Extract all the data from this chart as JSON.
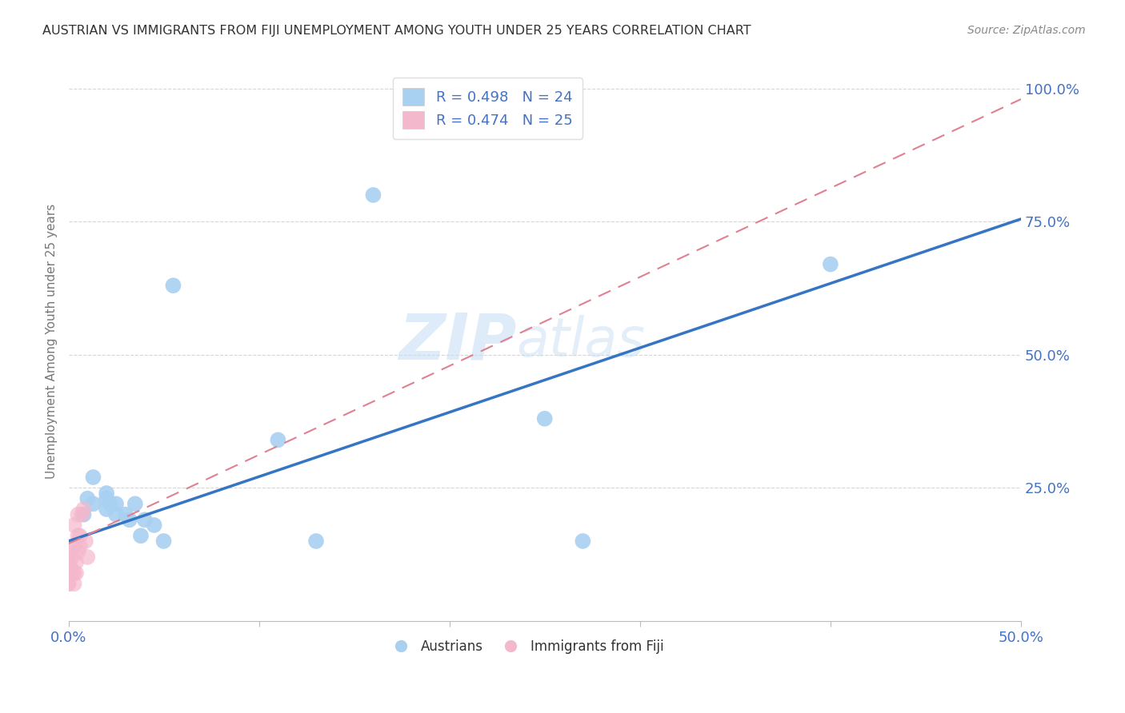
{
  "title": "AUSTRIAN VS IMMIGRANTS FROM FIJI UNEMPLOYMENT AMONG YOUTH UNDER 25 YEARS CORRELATION CHART",
  "source": "Source: ZipAtlas.com",
  "ylabel": "Unemployment Among Youth under 25 years",
  "xlim": [
    0.0,
    0.5
  ],
  "ylim": [
    0.0,
    1.05
  ],
  "legend_blue_label": "R = 0.498   N = 24",
  "legend_pink_label": "R = 0.474   N = 25",
  "legend_label_austrians": "Austrians",
  "legend_label_fiji": "Immigrants from Fiji",
  "blue_color": "#a8d0f0",
  "pink_color": "#f4b8cc",
  "blue_line_color": "#3575c3",
  "pink_line_color": "#e08090",
  "text_color": "#4472C4",
  "watermark_color": "#c8dff5",
  "austrians_x": [
    0.008,
    0.01,
    0.013,
    0.013,
    0.02,
    0.02,
    0.02,
    0.022,
    0.025,
    0.025,
    0.03,
    0.032,
    0.035,
    0.038,
    0.04,
    0.045,
    0.05,
    0.055,
    0.11,
    0.13,
    0.16,
    0.25,
    0.27,
    0.4
  ],
  "austrians_y": [
    0.2,
    0.23,
    0.27,
    0.22,
    0.21,
    0.24,
    0.23,
    0.22,
    0.2,
    0.22,
    0.2,
    0.19,
    0.22,
    0.16,
    0.19,
    0.18,
    0.15,
    0.63,
    0.34,
    0.15,
    0.8,
    0.38,
    0.15,
    0.67
  ],
  "fiji_x": [
    0.0,
    0.0,
    0.0,
    0.0,
    0.0,
    0.001,
    0.001,
    0.001,
    0.002,
    0.002,
    0.003,
    0.003,
    0.003,
    0.003,
    0.004,
    0.004,
    0.005,
    0.005,
    0.005,
    0.006,
    0.006,
    0.007,
    0.008,
    0.009,
    0.01
  ],
  "fiji_y": [
    0.07,
    0.09,
    0.11,
    0.07,
    0.09,
    0.1,
    0.13,
    0.1,
    0.12,
    0.09,
    0.14,
    0.18,
    0.09,
    0.07,
    0.11,
    0.09,
    0.16,
    0.2,
    0.13,
    0.16,
    0.14,
    0.2,
    0.21,
    0.15,
    0.12
  ],
  "blue_trend_x": [
    0.0,
    0.5
  ],
  "blue_trend_y": [
    0.15,
    0.755
  ],
  "pink_trend_x": [
    0.0,
    0.5
  ],
  "pink_trend_y": [
    0.145,
    0.98
  ]
}
